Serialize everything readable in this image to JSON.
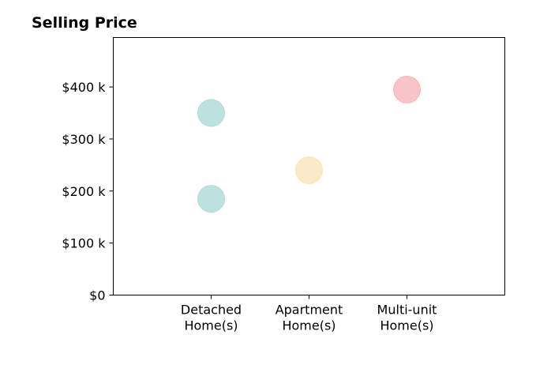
{
  "chart_data": {
    "type": "scatter",
    "title": "Selling Price",
    "xlabel": "",
    "ylabel": "",
    "categories": [
      [
        "Detached",
        "Home(s)"
      ],
      [
        "Apartment",
        "Home(s)"
      ],
      [
        "Multi-unit",
        "Home(s)"
      ]
    ],
    "y_ticks": [
      {
        "value": 0,
        "label": "$0"
      },
      {
        "value": 100000,
        "label": "$100 k"
      },
      {
        "value": 200000,
        "label": "$200 k"
      },
      {
        "value": 300000,
        "label": "$300 k"
      },
      {
        "value": 400000,
        "label": "$400 k"
      }
    ],
    "ylim": [
      0,
      495000
    ],
    "xlim": [
      -1,
      3
    ],
    "grid": false,
    "legend": "none",
    "points": [
      {
        "category": "Detached",
        "x": 0,
        "y": 350000,
        "color": "#b2dcd8"
      },
      {
        "category": "Detached",
        "x": 0,
        "y": 185000,
        "color": "#b2dcd8"
      },
      {
        "category": "Apartment",
        "x": 1,
        "y": 240000,
        "color": "#f8e5c1"
      },
      {
        "category": "Multi-unit",
        "x": 2,
        "y": 395000,
        "color": "#f7b8bf"
      }
    ]
  }
}
